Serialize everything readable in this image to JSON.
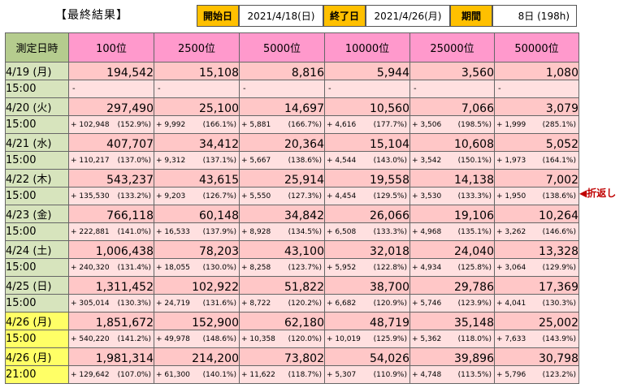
{
  "header": {
    "title": "【最終結果】",
    "start_label": "開始日",
    "start_value": "2021/4/18(日)",
    "end_label": "終了日",
    "end_value": "2021/4/26(月)",
    "period_label": "期間",
    "period_value": "8日 (198h)"
  },
  "table": {
    "date_header": "測定日時",
    "columns": [
      "100位",
      "2500位",
      "5000位",
      "10000位",
      "25000位",
      "50000位"
    ],
    "rows": [
      {
        "date": "4/19 (月)",
        "time": "15:00",
        "highlight": false,
        "values": [
          "194,542",
          "15,108",
          "8,816",
          "5,944",
          "3,560",
          "1,080"
        ],
        "deltas": [
          null,
          null,
          null,
          null,
          null,
          null
        ]
      },
      {
        "date": "4/20 (火)",
        "time": "15:00",
        "highlight": false,
        "values": [
          "297,490",
          "25,100",
          "14,697",
          "10,560",
          "7,066",
          "3,079"
        ],
        "deltas": [
          [
            "+ 102,948",
            "(152.9%)"
          ],
          [
            "+ 9,992",
            "(166.1%)"
          ],
          [
            "+ 5,881",
            "(166.7%)"
          ],
          [
            "+ 4,616",
            "(177.7%)"
          ],
          [
            "+ 3,506",
            "(198.5%)"
          ],
          [
            "+ 1,999",
            "(285.1%)"
          ]
        ]
      },
      {
        "date": "4/21 (水)",
        "time": "15:00",
        "highlight": false,
        "values": [
          "407,707",
          "34,412",
          "20,364",
          "15,104",
          "10,608",
          "5,052"
        ],
        "deltas": [
          [
            "+ 110,217",
            "(137.0%)"
          ],
          [
            "+ 9,312",
            "(137.1%)"
          ],
          [
            "+ 5,667",
            "(138.6%)"
          ],
          [
            "+ 4,544",
            "(143.0%)"
          ],
          [
            "+ 3,542",
            "(150.1%)"
          ],
          [
            "+ 1,973",
            "(164.1%)"
          ]
        ]
      },
      {
        "date": "4/22 (木)",
        "time": "15:00",
        "highlight": false,
        "values": [
          "543,237",
          "43,615",
          "25,914",
          "19,558",
          "14,138",
          "7,002"
        ],
        "deltas": [
          [
            "+ 135,530",
            "(133.2%)"
          ],
          [
            "+ 9,203",
            "(126.7%)"
          ],
          [
            "+ 5,550",
            "(127.3%)"
          ],
          [
            "+ 4,454",
            "(129.5%)"
          ],
          [
            "+ 3,530",
            "(133.3%)"
          ],
          [
            "+ 1,950",
            "(138.6%)"
          ]
        ]
      },
      {
        "date": "4/23 (金)",
        "time": "15:00",
        "highlight": false,
        "values": [
          "766,118",
          "60,148",
          "34,842",
          "26,066",
          "19,106",
          "10,264"
        ],
        "deltas": [
          [
            "+ 222,881",
            "(141.0%)"
          ],
          [
            "+ 16,533",
            "(137.9%)"
          ],
          [
            "+ 8,928",
            "(134.5%)"
          ],
          [
            "+ 6,508",
            "(133.3%)"
          ],
          [
            "+ 4,968",
            "(135.1%)"
          ],
          [
            "+ 3,262",
            "(146.6%)"
          ]
        ]
      },
      {
        "date": "4/24 (土)",
        "time": "15:00",
        "highlight": false,
        "values": [
          "1,006,438",
          "78,203",
          "43,100",
          "32,018",
          "24,040",
          "13,328"
        ],
        "deltas": [
          [
            "+ 240,320",
            "(131.4%)"
          ],
          [
            "+ 18,055",
            "(130.0%)"
          ],
          [
            "+ 8,258",
            "(123.7%)"
          ],
          [
            "+ 5,952",
            "(122.8%)"
          ],
          [
            "+ 4,934",
            "(125.8%)"
          ],
          [
            "+ 3,064",
            "(129.9%)"
          ]
        ]
      },
      {
        "date": "4/25 (日)",
        "time": "15:00",
        "highlight": false,
        "values": [
          "1,311,452",
          "102,922",
          "51,822",
          "38,700",
          "29,786",
          "17,369"
        ],
        "deltas": [
          [
            "+ 305,014",
            "(130.3%)"
          ],
          [
            "+ 24,719",
            "(131.6%)"
          ],
          [
            "+ 8,722",
            "(120.2%)"
          ],
          [
            "+ 6,682",
            "(120.9%)"
          ],
          [
            "+ 5,746",
            "(123.9%)"
          ],
          [
            "+ 4,041",
            "(130.3%)"
          ]
        ]
      },
      {
        "date": "4/26 (月)",
        "time": "15:00",
        "highlight": true,
        "values": [
          "1,851,672",
          "152,900",
          "62,180",
          "48,719",
          "35,148",
          "25,002"
        ],
        "deltas": [
          [
            "+ 540,220",
            "(141.2%)"
          ],
          [
            "+ 49,978",
            "(148.6%)"
          ],
          [
            "+ 10,358",
            "(120.0%)"
          ],
          [
            "+ 10,019",
            "(125.9%)"
          ],
          [
            "+ 5,362",
            "(118.0%)"
          ],
          [
            "+ 7,633",
            "(143.9%)"
          ]
        ]
      },
      {
        "date": "4/26 (月)",
        "time": "21:00",
        "highlight": true,
        "values": [
          "1,981,314",
          "214,200",
          "73,802",
          "54,026",
          "39,896",
          "30,798"
        ],
        "deltas": [
          [
            "+ 129,642",
            "(107.0%)"
          ],
          [
            "+ 61,300",
            "(140.1%)"
          ],
          [
            "+ 11,622",
            "(118.7%)"
          ],
          [
            "+ 5,307",
            "(110.9%)"
          ],
          [
            "+ 4,748",
            "(113.5%)"
          ],
          [
            "+ 5,796",
            "(123.2%)"
          ]
        ]
      }
    ]
  },
  "note": "◀折返し",
  "colors": {
    "header_pink": "#ff99cc",
    "value_pink": "#ffc7c7",
    "date_green": "#d7e4bd",
    "highlight_yellow": "#ffff66",
    "label_orange": "#ffc000",
    "note_red": "#c00000"
  }
}
